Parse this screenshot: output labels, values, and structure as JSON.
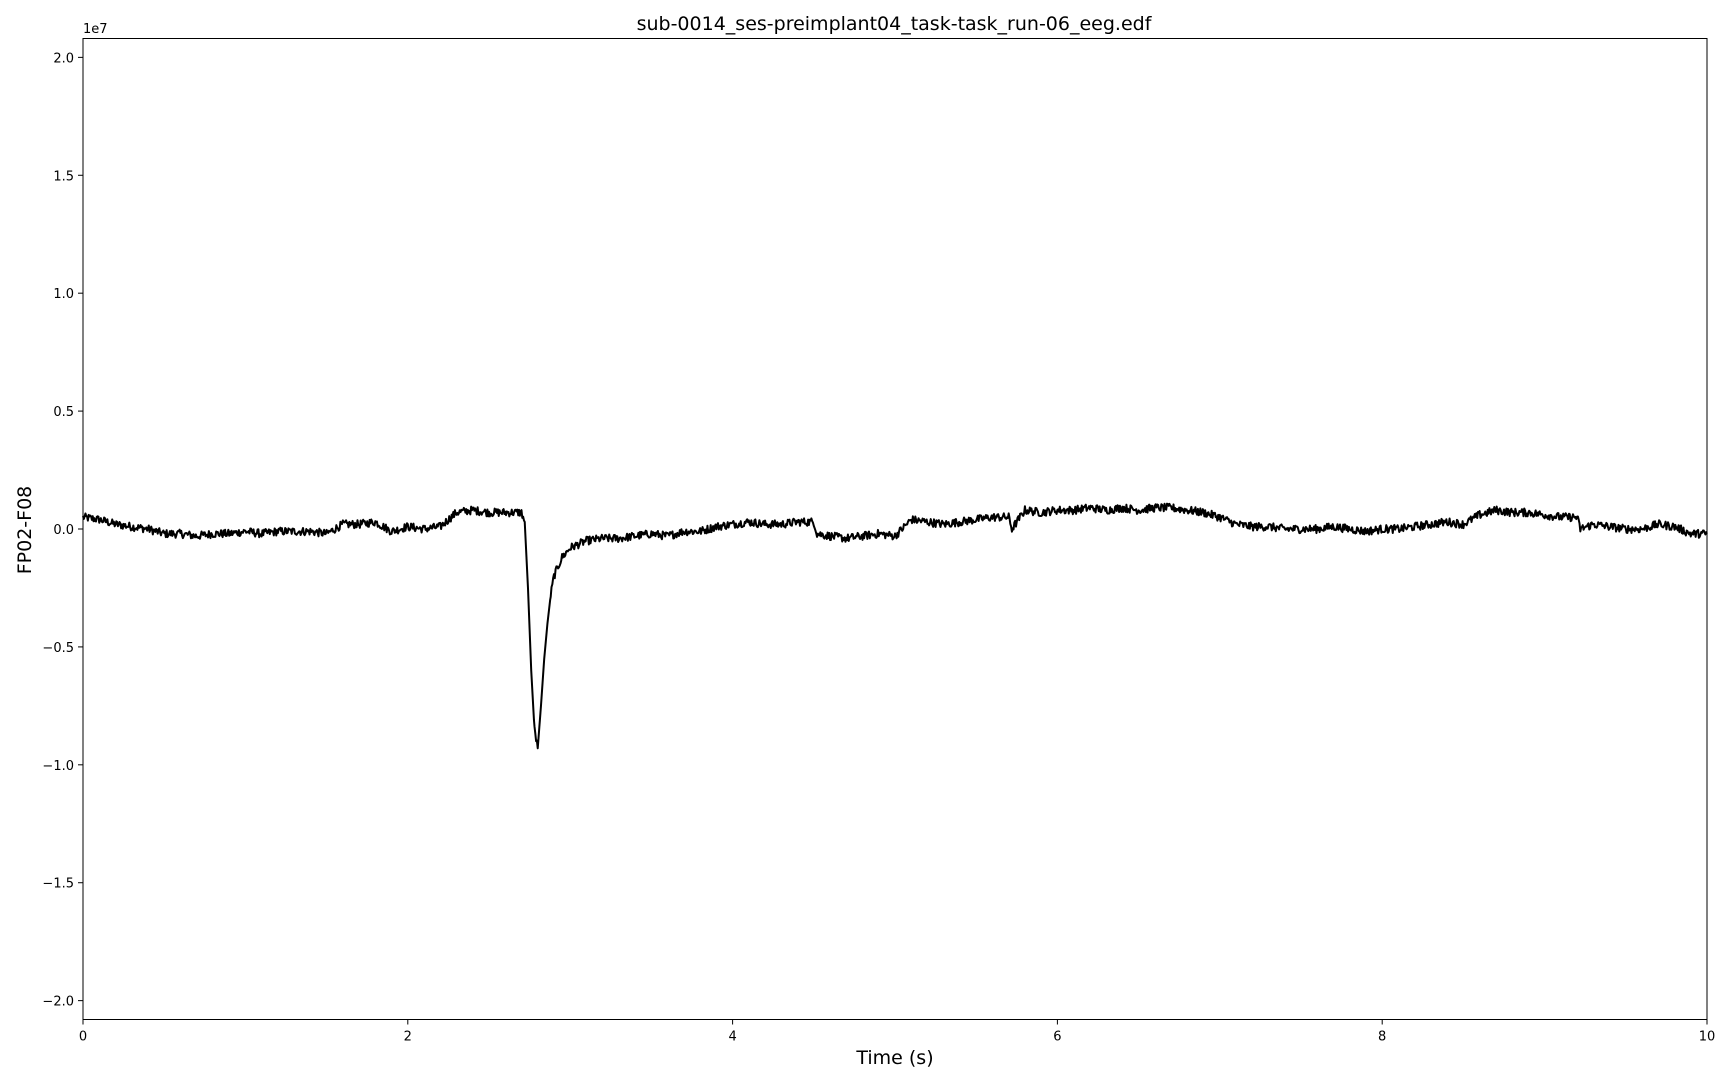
{
  "chart_data": {
    "type": "line",
    "title": "sub-0014_ses-preimplant04_task-task_run-06_eeg.edf",
    "xlabel": "Time (s)",
    "ylabel": "FP02-F08",
    "y_offset_text": "1e7",
    "xlim": [
      0,
      10
    ],
    "ylim": [
      -2.08,
      2.08
    ],
    "y_scale_exponent": 7,
    "x_ticks": [
      0,
      2,
      4,
      6,
      8,
      10
    ],
    "x_tick_labels": [
      "0",
      "2",
      "4",
      "6",
      "8",
      "10"
    ],
    "y_ticks": [
      -2.0,
      -1.5,
      -1.0,
      -0.5,
      0.0,
      0.5,
      1.0,
      1.5,
      2.0
    ],
    "y_tick_labels": [
      "−2.0",
      "−1.5",
      "−1.0",
      "−0.5",
      "0.0",
      "0.5",
      "1.0",
      "1.5",
      "2.0"
    ],
    "grid": false,
    "line_color": "#000000",
    "series": [
      {
        "x": [
          0,
          0.1,
          0.2,
          0.3,
          0.4,
          0.5,
          0.6,
          0.7,
          0.8,
          0.9,
          1.0,
          1.1,
          1.2,
          1.3,
          1.4,
          1.5,
          1.6,
          1.7,
          1.8,
          1.9,
          2.0,
          2.1,
          2.2,
          2.3,
          2.4,
          2.5,
          2.6,
          2.7,
          2.72,
          2.74,
          2.76,
          2.78,
          2.8,
          2.82,
          2.84,
          2.86,
          2.88,
          2.9,
          2.95,
          3.0,
          3.1,
          3.2,
          3.3,
          3.4,
          3.5,
          3.6,
          3.7,
          3.8,
          3.9,
          4.0,
          4.1,
          4.2,
          4.3,
          4.4,
          4.5,
          4.52,
          4.6,
          4.7,
          4.8,
          4.9,
          5.0,
          5.1,
          5.2,
          5.3,
          5.4,
          5.5,
          5.6,
          5.7,
          5.72,
          5.8,
          5.9,
          6.0,
          6.1,
          6.2,
          6.3,
          6.4,
          6.5,
          6.6,
          6.7,
          6.8,
          6.9,
          7.0,
          7.1,
          7.2,
          7.3,
          7.4,
          7.5,
          7.6,
          7.7,
          7.8,
          7.9,
          8.0,
          8.1,
          8.2,
          8.3,
          8.4,
          8.5,
          8.6,
          8.7,
          8.8,
          8.9,
          9.0,
          9.1,
          9.2,
          9.22,
          9.3,
          9.4,
          9.5,
          9.6,
          9.7,
          9.8,
          9.9,
          10.0
        ],
        "y": [
          0.05,
          0.04,
          0.02,
          0.01,
          0.0,
          -0.02,
          -0.02,
          -0.03,
          -0.02,
          -0.02,
          -0.01,
          -0.02,
          -0.01,
          -0.01,
          -0.01,
          -0.02,
          0.02,
          0.02,
          0.03,
          -0.01,
          0.01,
          0.0,
          0.01,
          0.07,
          0.08,
          0.07,
          0.07,
          0.07,
          0.03,
          -0.25,
          -0.6,
          -0.85,
          -0.93,
          -0.75,
          -0.55,
          -0.4,
          -0.28,
          -0.2,
          -0.12,
          -0.08,
          -0.05,
          -0.04,
          -0.04,
          -0.03,
          -0.02,
          -0.03,
          -0.01,
          -0.01,
          0.01,
          0.02,
          0.03,
          0.02,
          0.02,
          0.03,
          0.03,
          -0.02,
          -0.03,
          -0.04,
          -0.03,
          -0.02,
          -0.03,
          0.04,
          0.03,
          0.02,
          0.03,
          0.04,
          0.05,
          0.05,
          0.0,
          0.08,
          0.07,
          0.08,
          0.08,
          0.09,
          0.08,
          0.09,
          0.08,
          0.09,
          0.09,
          0.08,
          0.07,
          0.05,
          0.02,
          0.01,
          0.01,
          0.0,
          0.0,
          0.0,
          0.01,
          0.0,
          -0.01,
          0.0,
          0.0,
          0.01,
          0.02,
          0.03,
          0.02,
          0.06,
          0.08,
          0.07,
          0.07,
          0.06,
          0.05,
          0.05,
          0.0,
          0.02,
          0.01,
          0.0,
          0.0,
          0.02,
          0.01,
          -0.02,
          -0.02
        ]
      }
    ]
  }
}
